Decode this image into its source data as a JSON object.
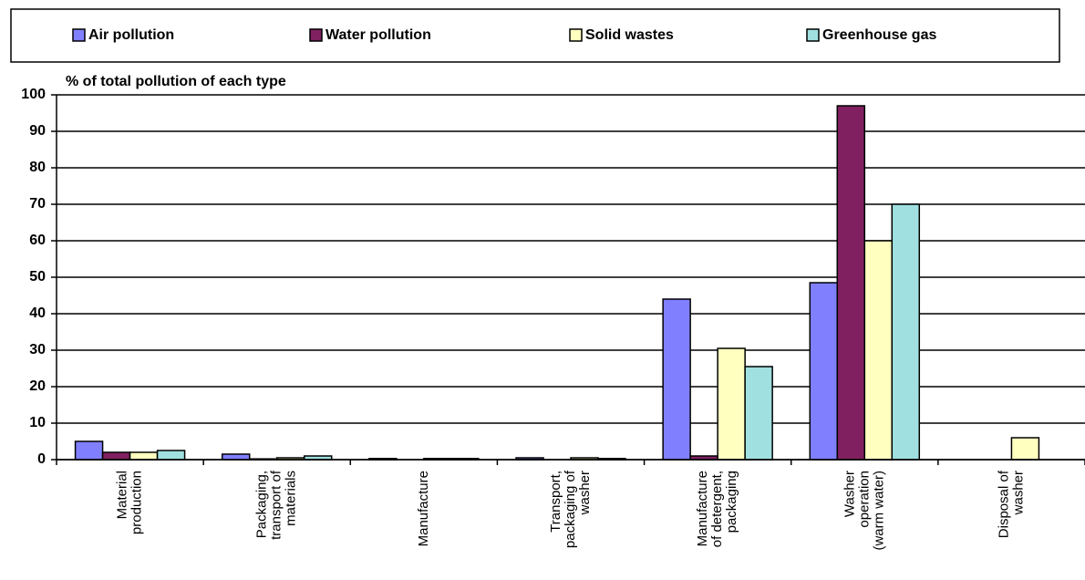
{
  "chart_data": {
    "type": "bar",
    "y_axis_label": "% of total pollution of each type",
    "categories": [
      "Material\nproduction",
      "Packaging,\ntransport of\nmaterials",
      "Manufacture",
      "Transport,\npackaging of\nwasher",
      "Manufacture\nof detergent,\npackaging",
      "Washer\noperation\n(warm water)",
      "Disposal of\nwasher"
    ],
    "series": [
      {
        "name": "Air pollution",
        "color": "#8080ff",
        "values": [
          5,
          1.5,
          0.3,
          0.5,
          44,
          48.5,
          0
        ]
      },
      {
        "name": "Water pollution",
        "color": "#802060",
        "values": [
          2,
          0.2,
          0,
          0,
          1,
          97,
          0
        ]
      },
      {
        "name": "Solid wastes",
        "color": "#ffffc0",
        "values": [
          2,
          0.5,
          0.3,
          0.5,
          30.5,
          60,
          6
        ]
      },
      {
        "name": "Greenhouse gas",
        "color": "#a0e0e0",
        "values": [
          2.5,
          1,
          0.3,
          0.3,
          25.5,
          70,
          0
        ]
      }
    ],
    "ylim": [
      0,
      100
    ],
    "yticks": [
      0,
      10,
      20,
      30,
      40,
      50,
      60,
      70,
      80,
      90,
      100
    ],
    "grid": true
  }
}
